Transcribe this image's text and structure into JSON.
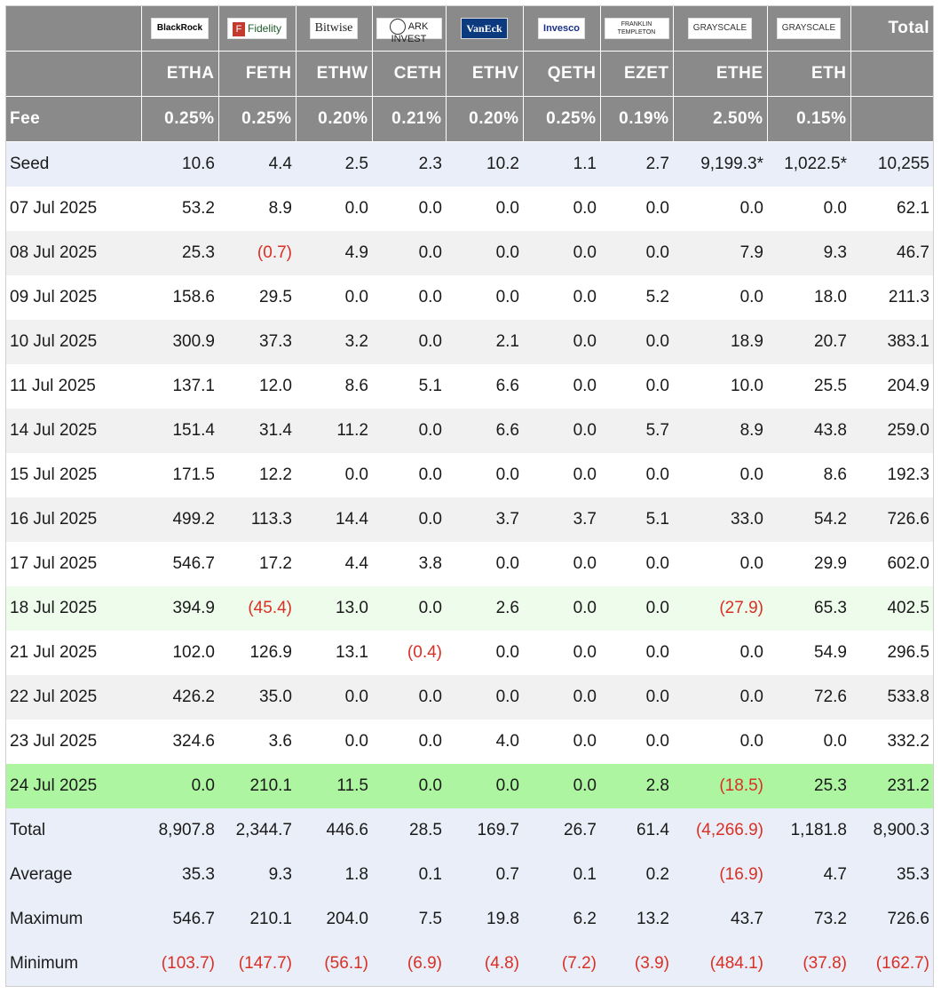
{
  "header": {
    "logos": [
      {
        "name": "blackrock",
        "text": "BlackRock"
      },
      {
        "name": "fidelity",
        "text": "Fidelity"
      },
      {
        "name": "bitwise",
        "text": "Bitwise"
      },
      {
        "name": "ark",
        "text": "ARK INVEST"
      },
      {
        "name": "vaneck",
        "text": "VanEck"
      },
      {
        "name": "invesco",
        "text": "Invesco"
      },
      {
        "name": "franklin",
        "text": "FRANKLIN TEMPLETON"
      },
      {
        "name": "grayscale1",
        "text": "GRAYSCALE"
      },
      {
        "name": "grayscale2",
        "text": "GRAYSCALE"
      }
    ],
    "total_label": "Total",
    "tickers": [
      "ETHA",
      "FETH",
      "ETHW",
      "CETH",
      "ETHV",
      "QETH",
      "EZET",
      "ETHE",
      "ETH"
    ],
    "fee_label": "Fee",
    "fees": [
      "0.25%",
      "0.25%",
      "0.20%",
      "0.21%",
      "0.20%",
      "0.25%",
      "0.19%",
      "2.50%",
      "0.15%"
    ]
  },
  "rows": [
    {
      "label": "Seed",
      "style": "seed",
      "values": [
        "10.6",
        "4.4",
        "2.5",
        "2.3",
        "10.2",
        "1.1",
        "2.7",
        "9,199.3*",
        "1,022.5*",
        "10,255"
      ]
    },
    {
      "label": "07 Jul 2025",
      "style": "plain",
      "values": [
        "53.2",
        "8.9",
        "0.0",
        "0.0",
        "0.0",
        "0.0",
        "0.0",
        "0.0",
        "0.0",
        "62.1"
      ]
    },
    {
      "label": "08 Jul 2025",
      "style": "stripe",
      "values": [
        "25.3",
        "(0.7)",
        "4.9",
        "0.0",
        "0.0",
        "0.0",
        "0.0",
        "7.9",
        "9.3",
        "46.7"
      ]
    },
    {
      "label": "09 Jul 2025",
      "style": "plain",
      "values": [
        "158.6",
        "29.5",
        "0.0",
        "0.0",
        "0.0",
        "0.0",
        "5.2",
        "0.0",
        "18.0",
        "211.3"
      ]
    },
    {
      "label": "10 Jul 2025",
      "style": "stripe",
      "values": [
        "300.9",
        "37.3",
        "3.2",
        "0.0",
        "2.1",
        "0.0",
        "0.0",
        "18.9",
        "20.7",
        "383.1"
      ]
    },
    {
      "label": "11 Jul 2025",
      "style": "plain",
      "values": [
        "137.1",
        "12.0",
        "8.6",
        "5.1",
        "6.6",
        "0.0",
        "0.0",
        "10.0",
        "25.5",
        "204.9"
      ]
    },
    {
      "label": "14 Jul 2025",
      "style": "stripe",
      "values": [
        "151.4",
        "31.4",
        "11.2",
        "0.0",
        "6.6",
        "0.0",
        "5.7",
        "8.9",
        "43.8",
        "259.0"
      ]
    },
    {
      "label": "15 Jul 2025",
      "style": "plain",
      "values": [
        "171.5",
        "12.2",
        "0.0",
        "0.0",
        "0.0",
        "0.0",
        "0.0",
        "0.0",
        "8.6",
        "192.3"
      ]
    },
    {
      "label": "16 Jul 2025",
      "style": "stripe",
      "values": [
        "499.2",
        "113.3",
        "14.4",
        "0.0",
        "3.7",
        "3.7",
        "5.1",
        "33.0",
        "54.2",
        "726.6"
      ]
    },
    {
      "label": "17 Jul 2025",
      "style": "plain",
      "values": [
        "546.7",
        "17.2",
        "4.4",
        "3.8",
        "0.0",
        "0.0",
        "0.0",
        "0.0",
        "29.9",
        "602.0"
      ]
    },
    {
      "label": "18 Jul 2025",
      "style": "green-light",
      "values": [
        "394.9",
        "(45.4)",
        "13.0",
        "0.0",
        "2.6",
        "0.0",
        "0.0",
        "(27.9)",
        "65.3",
        "402.5"
      ]
    },
    {
      "label": "21 Jul 2025",
      "style": "plain",
      "values": [
        "102.0",
        "126.9",
        "13.1",
        "(0.4)",
        "0.0",
        "0.0",
        "0.0",
        "0.0",
        "54.9",
        "296.5"
      ]
    },
    {
      "label": "22 Jul 2025",
      "style": "stripe",
      "values": [
        "426.2",
        "35.0",
        "0.0",
        "0.0",
        "0.0",
        "0.0",
        "0.0",
        "0.0",
        "72.6",
        "533.8"
      ]
    },
    {
      "label": "23 Jul 2025",
      "style": "plain",
      "values": [
        "324.6",
        "3.6",
        "0.0",
        "0.0",
        "4.0",
        "0.0",
        "0.0",
        "0.0",
        "0.0",
        "332.2"
      ]
    },
    {
      "label": "24 Jul 2025",
      "style": "green-bright",
      "values": [
        "0.0",
        "210.1",
        "11.5",
        "0.0",
        "0.0",
        "0.0",
        "2.8",
        "(18.5)",
        "25.3",
        "231.2"
      ]
    },
    {
      "label": "Total",
      "style": "summary",
      "values": [
        "8,907.8",
        "2,344.7",
        "446.6",
        "28.5",
        "169.7",
        "26.7",
        "61.4",
        "(4,266.9)",
        "1,181.8",
        "8,900.3"
      ]
    },
    {
      "label": "Average",
      "style": "summary",
      "values": [
        "35.3",
        "9.3",
        "1.8",
        "0.1",
        "0.7",
        "0.1",
        "0.2",
        "(16.9)",
        "4.7",
        "35.3"
      ]
    },
    {
      "label": "Maximum",
      "style": "summary",
      "values": [
        "546.7",
        "210.1",
        "204.0",
        "7.5",
        "19.8",
        "6.2",
        "13.2",
        "43.7",
        "73.2",
        "726.6"
      ]
    },
    {
      "label": "Minimum",
      "style": "summary",
      "values": [
        "(103.7)",
        "(147.7)",
        "(56.1)",
        "(6.9)",
        "(4.8)",
        "(7.2)",
        "(3.9)",
        "(484.1)",
        "(37.8)",
        "(162.7)"
      ]
    }
  ],
  "colors": {
    "header_bg": "#8a8a8a",
    "negative": "#d93025",
    "seed_bg": "#eaeef8",
    "highlight_light": "#eefcec",
    "highlight_bright": "#adf5a0"
  }
}
